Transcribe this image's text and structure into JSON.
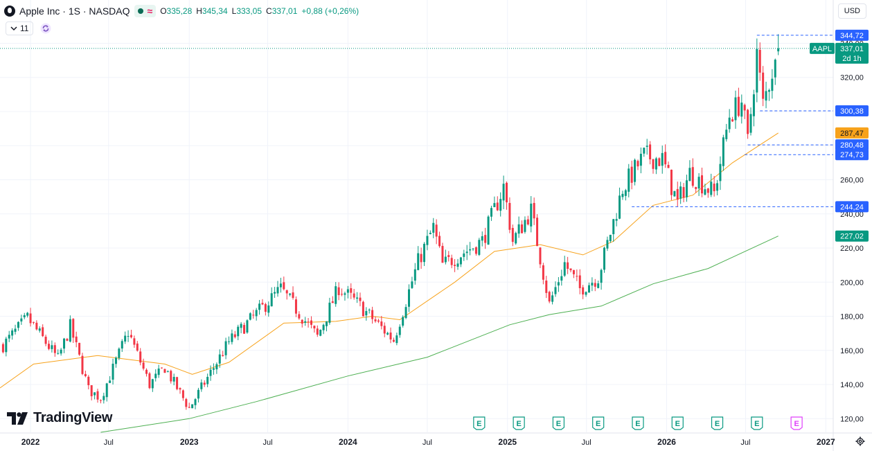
{
  "header": {
    "title": "Apple Inc · 1S · NASDAQ",
    "ohlc": {
      "o_label": "O",
      "o": "335,28",
      "h_label": "H",
      "h": "345,34",
      "l_label": "L",
      "l": "333,05",
      "c_label": "C",
      "c": "337,01",
      "change": "+0,88 (+0,26%)"
    },
    "collapse_count": "11",
    "currency": "USD"
  },
  "brand": {
    "name": "TradingView"
  },
  "colors": {
    "up": "#089981",
    "down": "#f23645",
    "ma_short": "#f7a21b",
    "ma_long": "#4caf50",
    "label_blue": "#2962ff",
    "event": "#089981",
    "event_future": "#e040fb"
  },
  "chart_data": {
    "type": "candlestick",
    "symbol": "AAPL",
    "interval": "1W",
    "ylim": [
      112,
      354
    ],
    "x_range": [
      "2021-10-25",
      "2027-01-18"
    ],
    "y_ticks": [
      "120,00",
      "140,00",
      "160,00",
      "180,00",
      "200,00",
      "220,00",
      "240,00",
      "260,00",
      "280,00",
      "300,00",
      "320,00",
      "340,00"
    ],
    "y_tick_values": [
      120,
      140,
      160,
      180,
      200,
      220,
      240,
      260,
      280,
      300,
      320,
      340
    ],
    "x_ticks": [
      {
        "label": "2022",
        "date": "2022-01-03"
      },
      {
        "label": "Jul",
        "date": "2022-07-01"
      },
      {
        "label": "2023",
        "date": "2023-01-02"
      },
      {
        "label": "Jul",
        "date": "2023-07-01"
      },
      {
        "label": "2024",
        "date": "2024-01-01"
      },
      {
        "label": "Jul",
        "date": "2024-07-01"
      },
      {
        "label": "2025",
        "date": "2025-01-01"
      },
      {
        "label": "Jul",
        "date": "2025-07-01"
      },
      {
        "label": "2026",
        "date": "2026-01-01"
      },
      {
        "label": "Jul",
        "date": "2026-07-01"
      },
      {
        "label": "2027",
        "date": "2027-01-01"
      }
    ],
    "anchors": [
      {
        "date": "2021-11-01",
        "close": 163
      },
      {
        "date": "2021-12-27",
        "close": 179
      },
      {
        "date": "2022-03-07",
        "close": 155
      },
      {
        "date": "2022-04-04",
        "close": 174
      },
      {
        "date": "2022-05-16",
        "close": 137
      },
      {
        "date": "2022-06-13",
        "close": 132
      },
      {
        "date": "2022-08-15",
        "close": 171
      },
      {
        "date": "2022-10-03",
        "close": 140
      },
      {
        "date": "2022-11-07",
        "close": 150
      },
      {
        "date": "2023-01-02",
        "close": 126
      },
      {
        "date": "2023-04-03",
        "close": 165
      },
      {
        "date": "2023-07-31",
        "close": 196
      },
      {
        "date": "2023-10-23",
        "close": 168
      },
      {
        "date": "2023-12-11",
        "close": 197
      },
      {
        "date": "2024-01-29",
        "close": 186
      },
      {
        "date": "2024-04-15",
        "close": 166
      },
      {
        "date": "2024-06-10",
        "close": 212
      },
      {
        "date": "2024-07-15",
        "close": 232
      },
      {
        "date": "2024-08-05",
        "close": 210
      },
      {
        "date": "2024-11-04",
        "close": 224
      },
      {
        "date": "2024-12-23",
        "close": 256
      },
      {
        "date": "2025-01-13",
        "close": 224
      },
      {
        "date": "2025-02-24",
        "close": 242
      },
      {
        "date": "2025-04-07",
        "close": 187
      },
      {
        "date": "2025-05-12",
        "close": 211
      },
      {
        "date": "2025-06-16",
        "close": 196
      },
      {
        "date": "2025-07-28",
        "close": 203
      },
      {
        "date": "2025-09-22",
        "close": 255
      },
      {
        "date": "2025-11-10",
        "close": 274
      },
      {
        "date": "2025-12-22",
        "close": 272
      },
      {
        "date": "2026-01-26",
        "close": 246
      },
      {
        "date": "2026-02-23",
        "close": 264
      },
      {
        "date": "2026-04-20",
        "close": 252
      },
      {
        "date": "2026-05-25",
        "close": 298
      },
      {
        "date": "2026-06-22",
        "close": 306
      },
      {
        "date": "2026-07-06",
        "close": 282
      },
      {
        "date": "2026-07-27",
        "close": 334
      },
      {
        "date": "2026-08-10",
        "close": 304
      },
      {
        "date": "2026-09-14",
        "close": 337.01
      }
    ],
    "ma_short": {
      "color": "#f7a21b",
      "points": [
        {
          "date": "2021-10-25",
          "value": 138
        },
        {
          "date": "2022-01-10",
          "value": 152
        },
        {
          "date": "2022-06-06",
          "value": 157
        },
        {
          "date": "2022-11-07",
          "value": 152
        },
        {
          "date": "2023-01-09",
          "value": 146
        },
        {
          "date": "2023-04-03",
          "value": 153
        },
        {
          "date": "2023-08-07",
          "value": 176
        },
        {
          "date": "2023-12-04",
          "value": 177
        },
        {
          "date": "2024-02-26",
          "value": 180
        },
        {
          "date": "2024-04-29",
          "value": 178
        },
        {
          "date": "2024-09-02",
          "value": 200
        },
        {
          "date": "2024-12-02",
          "value": 218
        },
        {
          "date": "2025-03-17",
          "value": 222
        },
        {
          "date": "2025-06-23",
          "value": 216
        },
        {
          "date": "2025-09-01",
          "value": 224
        },
        {
          "date": "2025-12-01",
          "value": 245
        },
        {
          "date": "2026-03-02",
          "value": 251
        },
        {
          "date": "2026-06-01",
          "value": 270
        },
        {
          "date": "2026-09-14",
          "value": 287.47
        }
      ]
    },
    "ma_long": {
      "color": "#4caf50",
      "points": [
        {
          "date": "2022-06-13",
          "value": 112
        },
        {
          "date": "2023-01-02",
          "value": 120
        },
        {
          "date": "2023-06-05",
          "value": 130
        },
        {
          "date": "2024-01-01",
          "value": 145
        },
        {
          "date": "2024-07-01",
          "value": 156
        },
        {
          "date": "2025-01-06",
          "value": 175
        },
        {
          "date": "2025-04-07",
          "value": 181
        },
        {
          "date": "2025-08-04",
          "value": 186
        },
        {
          "date": "2025-12-01",
          "value": 199
        },
        {
          "date": "2026-04-06",
          "value": 208
        },
        {
          "date": "2026-09-14",
          "value": 227.02
        }
      ]
    },
    "levels": [
      {
        "value": 344.72,
        "label": "344,72",
        "color": "#2962ff",
        "from": "2026-07-27"
      },
      {
        "value": 300.38,
        "label": "300,38",
        "color": "#2962ff",
        "from": "2026-08-03"
      },
      {
        "value": 280.48,
        "label": "280,48",
        "color": "#2962ff",
        "from": "2026-07-06"
      },
      {
        "value": 274.73,
        "label": "274,73",
        "color": "#2962ff",
        "from": "2026-06-29"
      },
      {
        "value": 244.24,
        "label": "244,24",
        "color": "#2962ff",
        "from": "2025-10-13"
      }
    ],
    "price_labels": [
      {
        "value": 287.47,
        "label": "287,47",
        "color": "#f7a21b",
        "text_color": "#131722"
      },
      {
        "value": 227.02,
        "label": "227,02",
        "color": "#089981",
        "text_color": "#ffffff"
      }
    ],
    "last_price": {
      "value": 337.01,
      "label": "337,01",
      "symbol": "AAPL",
      "countdown": "2d 1h",
      "color": "#089981"
    },
    "events": [
      {
        "date": "2024-10-28",
        "label": "E",
        "future": false
      },
      {
        "date": "2025-01-27",
        "label": "E",
        "future": false
      },
      {
        "date": "2025-04-28",
        "label": "E",
        "future": false
      },
      {
        "date": "2025-07-28",
        "label": "E",
        "future": false
      },
      {
        "date": "2025-10-27",
        "label": "E",
        "future": false
      },
      {
        "date": "2026-01-26",
        "label": "E",
        "future": false
      },
      {
        "date": "2026-04-27",
        "label": "E",
        "future": false
      },
      {
        "date": "2026-07-27",
        "label": "E",
        "future": false
      },
      {
        "date": "2026-10-26",
        "label": "E",
        "future": true
      }
    ]
  }
}
